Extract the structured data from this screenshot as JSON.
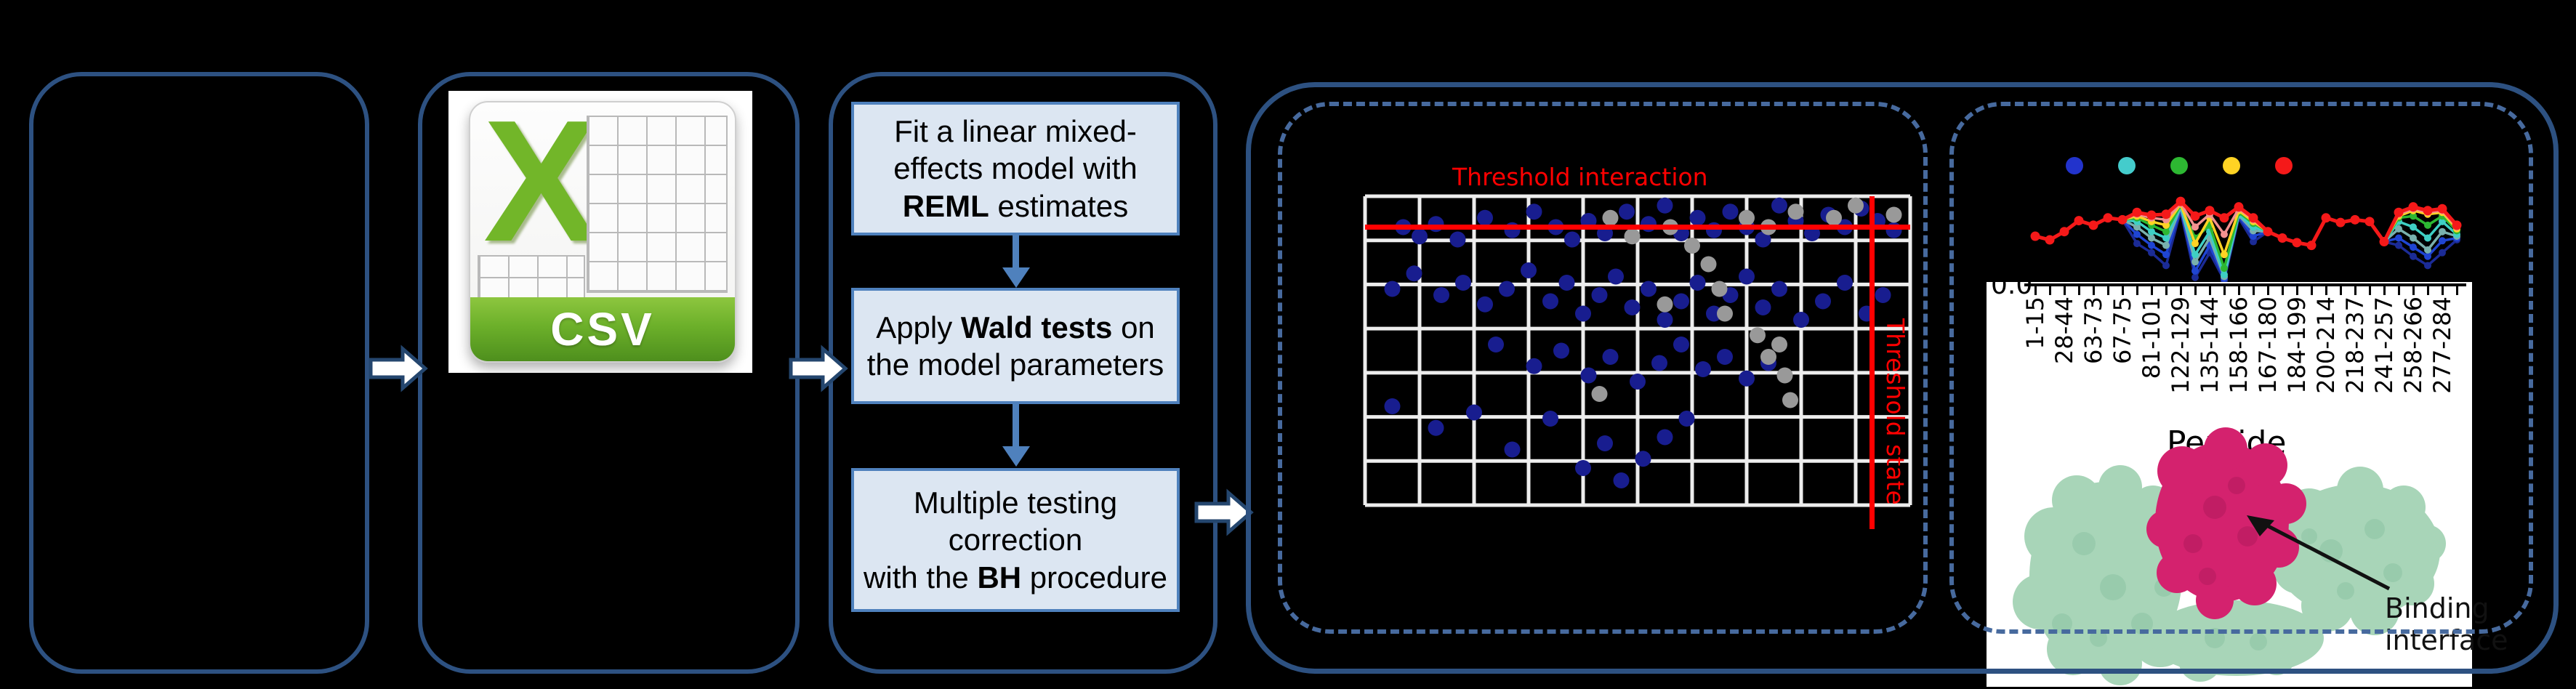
{
  "colors": {
    "background": "#000000",
    "box_border": "#2d5181",
    "dashed_border": "#476a9e",
    "flow_fill": "#dce6f2",
    "flow_border": "#4f81bd",
    "threshold_red": "#ff0000",
    "scatter_blue": "#181d8f",
    "scatter_gray": "#999999",
    "csv_green": "#72b629",
    "protein_green": "#a8d5b8",
    "protein_magenta": "#d4226e"
  },
  "flow_steps": [
    {
      "segments": [
        {
          "t": "Fit a linear mixed-effects model with "
        },
        {
          "t": "REML",
          "b": true
        },
        {
          "t": " estimates"
        }
      ]
    },
    {
      "segments": [
        {
          "t": "Apply "
        },
        {
          "t": "Wald tests",
          "b": true
        },
        {
          "t": " on the model parameters"
        }
      ]
    },
    {
      "segments": [
        {
          "t": "Multiple testing correction\nwith the "
        },
        {
          "t": "BH",
          "b": true
        },
        {
          "t": " procedure"
        }
      ]
    }
  ],
  "csv_icon": {
    "letter": "X",
    "label": "CSV"
  },
  "panel_interaction": {
    "title": "Threshold interaction",
    "side_label": "Threshold state"
  },
  "panel_state": {
    "binding_label": "Binding\ninterface",
    "y_tick": "0.0",
    "xlabel": "Peptide"
  },
  "chart_data": [
    {
      "type": "scatter",
      "title": "Threshold interaction",
      "grid": {
        "vlines": 10,
        "hlines": 7,
        "color": "#ededed",
        "on": true
      },
      "threshold_interaction_y": 0.9,
      "threshold_state_x": 0.93,
      "annotations": [
        {
          "text": "Threshold interaction",
          "color": "#ff0000",
          "position": "top"
        },
        {
          "text": "Threshold state",
          "color": "#ff0000",
          "position": "right",
          "rotation": 90
        }
      ],
      "series": [
        {
          "name": "blue-points",
          "color": "#181d8f",
          "r": 11,
          "points": [
            [
              0.07,
              0.9
            ],
            [
              0.1,
              0.87
            ],
            [
              0.13,
              0.91
            ],
            [
              0.17,
              0.86
            ],
            [
              0.22,
              0.93
            ],
            [
              0.27,
              0.89
            ],
            [
              0.31,
              0.95
            ],
            [
              0.35,
              0.9
            ],
            [
              0.38,
              0.86
            ],
            [
              0.41,
              0.92
            ],
            [
              0.44,
              0.88
            ],
            [
              0.48,
              0.95
            ],
            [
              0.52,
              0.91
            ],
            [
              0.55,
              0.97
            ],
            [
              0.58,
              0.88
            ],
            [
              0.61,
              0.93
            ],
            [
              0.64,
              0.89
            ],
            [
              0.67,
              0.95
            ],
            [
              0.7,
              0.9
            ],
            [
              0.73,
              0.86
            ],
            [
              0.76,
              0.97
            ],
            [
              0.79,
              0.92
            ],
            [
              0.82,
              0.88
            ],
            [
              0.85,
              0.94
            ],
            [
              0.88,
              0.9
            ],
            [
              0.91,
              0.96
            ],
            [
              0.94,
              0.92
            ],
            [
              0.97,
              0.89
            ],
            [
              0.05,
              0.7
            ],
            [
              0.09,
              0.75
            ],
            [
              0.14,
              0.68
            ],
            [
              0.18,
              0.72
            ],
            [
              0.22,
              0.65
            ],
            [
              0.26,
              0.7
            ],
            [
              0.3,
              0.76
            ],
            [
              0.34,
              0.66
            ],
            [
              0.37,
              0.72
            ],
            [
              0.4,
              0.62
            ],
            [
              0.43,
              0.68
            ],
            [
              0.46,
              0.74
            ],
            [
              0.49,
              0.64
            ],
            [
              0.52,
              0.7
            ],
            [
              0.55,
              0.6
            ],
            [
              0.58,
              0.66
            ],
            [
              0.61,
              0.72
            ],
            [
              0.64,
              0.62
            ],
            [
              0.67,
              0.68
            ],
            [
              0.7,
              0.74
            ],
            [
              0.73,
              0.64
            ],
            [
              0.76,
              0.7
            ],
            [
              0.8,
              0.6
            ],
            [
              0.84,
              0.66
            ],
            [
              0.88,
              0.72
            ],
            [
              0.92,
              0.62
            ],
            [
              0.95,
              0.68
            ],
            [
              0.24,
              0.52
            ],
            [
              0.31,
              0.45
            ],
            [
              0.36,
              0.5
            ],
            [
              0.41,
              0.42
            ],
            [
              0.45,
              0.48
            ],
            [
              0.5,
              0.4
            ],
            [
              0.54,
              0.46
            ],
            [
              0.58,
              0.52
            ],
            [
              0.62,
              0.44
            ],
            [
              0.66,
              0.48
            ],
            [
              0.7,
              0.41
            ],
            [
              0.74,
              0.46
            ],
            [
              0.05,
              0.32
            ],
            [
              0.13,
              0.25
            ],
            [
              0.2,
              0.3
            ],
            [
              0.27,
              0.18
            ],
            [
              0.34,
              0.28
            ],
            [
              0.4,
              0.12
            ],
            [
              0.44,
              0.2
            ],
            [
              0.47,
              0.08
            ],
            [
              0.51,
              0.15
            ],
            [
              0.55,
              0.22
            ],
            [
              0.59,
              0.28
            ]
          ]
        },
        {
          "name": "gray-points",
          "color": "#999999",
          "r": 11,
          "points": [
            [
              0.45,
              0.93
            ],
            [
              0.49,
              0.87
            ],
            [
              0.56,
              0.9
            ],
            [
              0.6,
              0.84
            ],
            [
              0.63,
              0.78
            ],
            [
              0.65,
              0.7
            ],
            [
              0.66,
              0.62
            ],
            [
              0.72,
              0.55
            ],
            [
              0.74,
              0.48
            ],
            [
              0.76,
              0.52
            ],
            [
              0.77,
              0.42
            ],
            [
              0.78,
              0.34
            ],
            [
              0.55,
              0.65
            ],
            [
              0.43,
              0.36
            ],
            [
              0.7,
              0.93
            ],
            [
              0.74,
              0.9
            ],
            [
              0.79,
              0.95
            ],
            [
              0.86,
              0.93
            ],
            [
              0.9,
              0.97
            ],
            [
              0.97,
              0.94
            ]
          ]
        }
      ]
    },
    {
      "type": "line",
      "xlabel": "Peptide",
      "y_tick_labels": [
        "0.0"
      ],
      "x_tick_count": 30,
      "x_tick_labels": [
        "1-15",
        "28-44",
        "63-73",
        "67-75",
        "81-101",
        "122-129",
        "135-144",
        "158-166",
        "167-180",
        "184-199",
        "200-214",
        "218-237",
        "241-257",
        "258-266",
        "277-284"
      ],
      "legend": {
        "position": "top",
        "marker_colors": [
          "#2233cc",
          "#44cccc",
          "#2db832",
          "#ffd324",
          "#f51919"
        ]
      },
      "series": [
        {
          "name": "navy",
          "color": "#1b2b96",
          "values": [
            50,
            46,
            55,
            67,
            62,
            70,
            68,
            42,
            32,
            18,
            78,
            5,
            32,
            2,
            70,
            44,
            55,
            48,
            43,
            40,
            70,
            65,
            68,
            66,
            44,
            40,
            28,
            18,
            32,
            46
          ]
        },
        {
          "name": "blue",
          "color": "#1f45d2",
          "values": [
            50,
            46,
            55,
            67,
            62,
            70,
            68,
            52,
            40,
            30,
            80,
            12,
            40,
            4,
            72,
            50,
            55,
            48,
            43,
            40,
            70,
            65,
            68,
            66,
            44,
            48,
            38,
            28,
            45,
            48
          ]
        },
        {
          "name": "cadet",
          "color": "#79b0ad",
          "values": [
            50,
            46,
            55,
            67,
            62,
            70,
            68,
            60,
            48,
            40,
            82,
            22,
            48,
            6,
            73,
            56,
            55,
            48,
            43,
            40,
            70,
            65,
            68,
            66,
            44,
            58,
            48,
            35,
            55,
            50
          ]
        },
        {
          "name": "cyan",
          "color": "#3ecfc4",
          "values": [
            50,
            46,
            55,
            67,
            62,
            70,
            68,
            66,
            55,
            48,
            83,
            30,
            55,
            8,
            74,
            60,
            55,
            48,
            43,
            40,
            70,
            65,
            68,
            66,
            44,
            66,
            60,
            48,
            66,
            52
          ]
        },
        {
          "name": "green",
          "color": "#2db832",
          "values": [
            50,
            46,
            55,
            67,
            62,
            70,
            68,
            70,
            62,
            55,
            84,
            48,
            62,
            15,
            76,
            64,
            55,
            48,
            43,
            40,
            70,
            65,
            68,
            66,
            44,
            70,
            72,
            62,
            72,
            56
          ]
        },
        {
          "name": "yellow",
          "color": "#ffd324",
          "values": [
            50,
            46,
            55,
            67,
            62,
            70,
            68,
            72,
            66,
            62,
            85,
            42,
            70,
            30,
            78,
            66,
            55,
            48,
            43,
            40,
            70,
            65,
            68,
            66,
            44,
            72,
            78,
            74,
            76,
            58
          ]
        },
        {
          "name": "salmon",
          "color": "#f2918f",
          "values": [
            50,
            46,
            55,
            67,
            62,
            70,
            68,
            74,
            70,
            68,
            86,
            60,
            74,
            52,
            80,
            68,
            55,
            48,
            43,
            40,
            70,
            65,
            68,
            66,
            44,
            74,
            80,
            76,
            78,
            60
          ]
        },
        {
          "name": "red",
          "color": "#f51919",
          "values": [
            50,
            46,
            55,
            67,
            62,
            70,
            68,
            76,
            73,
            74,
            88,
            72,
            78,
            70,
            82,
            70,
            55,
            48,
            43,
            40,
            70,
            65,
            68,
            66,
            44,
            76,
            82,
            78,
            80,
            62
          ]
        }
      ]
    }
  ]
}
